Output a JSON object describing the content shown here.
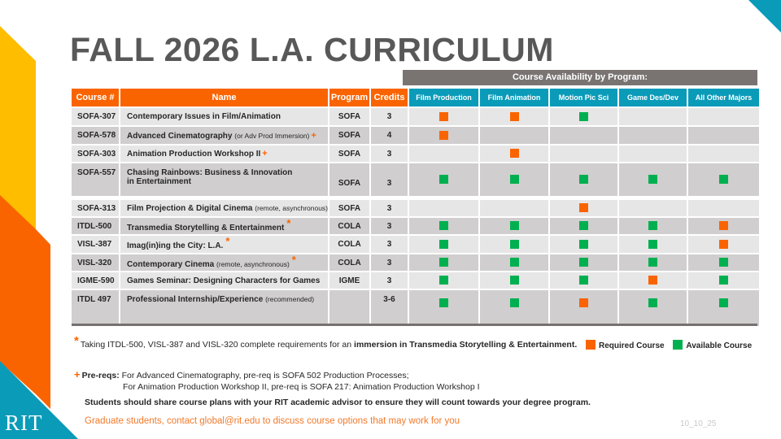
{
  "title": "FALL 2026 L.A. CURRICULUM",
  "logo": "RIT",
  "availability_banner": "Course Availability by Program:",
  "colors": {
    "orange": "#fa6400",
    "teal": "#0a9bb9",
    "green": "#00b050",
    "gray_banner": "#797472",
    "yellow": "#ffbd00",
    "orange_mid": "#ff8a00",
    "title_gray": "#585858"
  },
  "table": {
    "headers": {
      "course": "Course #",
      "name": "Name",
      "program": "Program",
      "credits": "Credits",
      "film_production": "Film Production",
      "film_animation": "Film Animation",
      "motion_pic_sci": "Motion Pic Sci",
      "game_des_dev": "Game Des/Dev",
      "all_other_majors": "All Other Majors"
    },
    "rows": [
      {
        "code": "SOFA-307",
        "name": "Contemporary Issues in Film/Animation",
        "note": "",
        "mark": "",
        "program": "SOFA",
        "credits": "3",
        "availability": [
          "required",
          "required",
          "available",
          "",
          ""
        ]
      },
      {
        "code": "SOFA-578",
        "name": "Advanced Cinematography",
        "note": "(or Adv Prod Immersion)",
        "mark": "+",
        "program": "SOFA",
        "credits": "4",
        "availability": [
          "required",
          "",
          "",
          "",
          ""
        ]
      },
      {
        "code": "SOFA-303",
        "name": "Animation Production Workshop II",
        "note": "",
        "mark": "+",
        "program": "SOFA",
        "credits": "3",
        "availability": [
          "",
          "required",
          "",
          "",
          ""
        ]
      },
      {
        "code": "SOFA-557",
        "name": "Chasing Rainbows: Business & Innovation",
        "name_line2": "in Entertainment",
        "note": "",
        "mark": "",
        "program": "SOFA",
        "credits": "3",
        "availability": [
          "available",
          "available",
          "available",
          "available",
          "available"
        ]
      },
      {
        "code": "SOFA-313",
        "name": "Film Projection & Digital Cinema",
        "note": "(remote, asynchronous)",
        "mark": "",
        "program": "SOFA",
        "credits": "3",
        "availability": [
          "",
          "",
          "required",
          "",
          ""
        ]
      },
      {
        "code": "ITDL-500",
        "name": "Transmedia Storytelling & Entertainment",
        "note": "",
        "mark": "*",
        "program": "COLA",
        "credits": "3",
        "availability": [
          "available",
          "available",
          "available",
          "available",
          "required"
        ]
      },
      {
        "code": "VISL-387",
        "name": "Imag(in)ing the City: L.A.",
        "note": "",
        "mark": "*",
        "program": "COLA",
        "credits": "3",
        "availability": [
          "available",
          "available",
          "available",
          "available",
          "required"
        ]
      },
      {
        "code": "VISL-320",
        "name": "Contemporary Cinema",
        "note": "(remote, asynchronous)",
        "mark": "*",
        "program": "COLA",
        "credits": "3",
        "availability": [
          "available",
          "available",
          "available",
          "available",
          "available"
        ]
      },
      {
        "code": "IGME-590",
        "name": "Games Seminar: Designing Characters for Games",
        "note": "",
        "mark": "",
        "program": "IGME",
        "credits": "3",
        "availability": [
          "available",
          "available",
          "available",
          "required",
          "available"
        ]
      },
      {
        "code": "ITDL 497",
        "name": "Professional Internship/Experience",
        "note": "(recommended)",
        "mark": "",
        "program": "",
        "credits": "3-6",
        "availability": [
          "available",
          "available",
          "required",
          "available",
          "available"
        ]
      }
    ]
  },
  "legend": {
    "required": "Required Course",
    "available": "Available Course"
  },
  "footnotes": {
    "star_symbol": "*",
    "star_text": "Taking ITDL-500, VISL-387 and VISL-320 complete requirements for an ",
    "star_bold": "immersion in Transmedia Storytelling & Entertainment.",
    "plus_symbol": "+",
    "prereq_label": "Pre-reqs:",
    "prereq_line1": " For Advanced Cinematography, pre-req is SOFA 502 Production Processes;",
    "prereq_line2": "For Animation Production Workshop II, pre-req is SOFA 217: Animation Production Workshop I",
    "advisor_note": "Students should share course plans with your RIT academic advisor to ensure they will count towards your degree program.",
    "grad_note": "Graduate students, contact global@rit.edu to discuss course options that may work for you"
  },
  "date_code": "10_10_25"
}
